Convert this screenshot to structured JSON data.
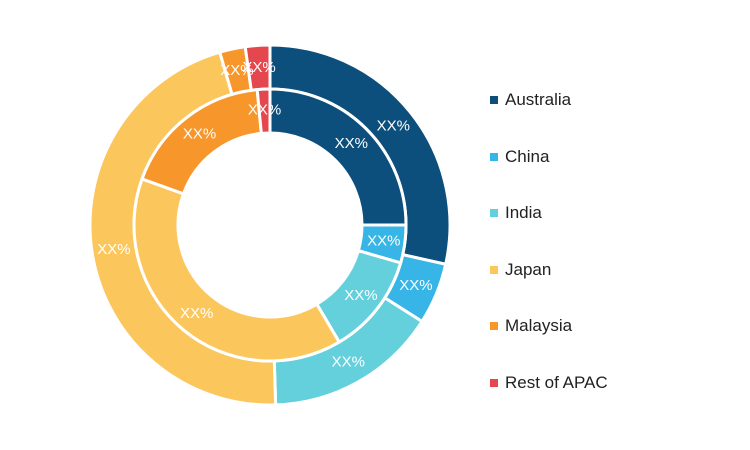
{
  "chart_data": {
    "type": "donut",
    "categories": [
      "Australia",
      "China",
      "India",
      "Japan",
      "Malaysia",
      "Rest of APAC"
    ],
    "colors": {
      "Australia": "#0d4f7c",
      "China": "#37b5e6",
      "India": "#63d0dc",
      "Japan": "#fbc75d",
      "Malaysia": "#f7962b",
      "Rest of APAC": "#e5474f"
    },
    "series": [
      {
        "ring": "outer",
        "values": [
          28.5,
          5.5,
          15.5,
          46.0,
          2.3,
          2.2
        ],
        "labels": [
          "XX%",
          "XX%",
          "XX%",
          "XX%",
          "XX%",
          "XX%"
        ]
      },
      {
        "ring": "inner",
        "values": [
          25.0,
          4.5,
          12.0,
          39.0,
          18.0,
          1.5
        ],
        "labels": [
          "XX%",
          "XX%",
          "XX%",
          "XX%",
          "XX%",
          "XX%"
        ]
      }
    ],
    "legend": {
      "position": "right",
      "items": [
        "Australia",
        "China",
        "India",
        "Japan",
        "Malaysia",
        "Rest of APAC"
      ]
    }
  }
}
